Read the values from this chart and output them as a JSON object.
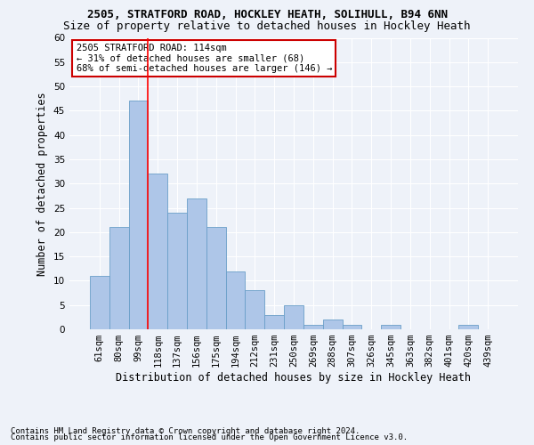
{
  "title1": "2505, STRATFORD ROAD, HOCKLEY HEATH, SOLIHULL, B94 6NN",
  "title2": "Size of property relative to detached houses in Hockley Heath",
  "xlabel": "Distribution of detached houses by size in Hockley Heath",
  "ylabel": "Number of detached properties",
  "categories": [
    "61sqm",
    "80sqm",
    "99sqm",
    "118sqm",
    "137sqm",
    "156sqm",
    "175sqm",
    "194sqm",
    "212sqm",
    "231sqm",
    "250sqm",
    "269sqm",
    "288sqm",
    "307sqm",
    "326sqm",
    "345sqm",
    "363sqm",
    "382sqm",
    "401sqm",
    "420sqm",
    "439sqm"
  ],
  "values": [
    11,
    21,
    47,
    32,
    24,
    27,
    21,
    12,
    8,
    3,
    5,
    1,
    2,
    1,
    0,
    1,
    0,
    0,
    0,
    1,
    0
  ],
  "bar_color": "#aec6e8",
  "bar_edge_color": "#6a9fc8",
  "red_line_x": 2.5,
  "annotation_line1": "2505 STRATFORD ROAD: 114sqm",
  "annotation_line2": "← 31% of detached houses are smaller (68)",
  "annotation_line3": "68% of semi-detached houses are larger (146) →",
  "annotation_box_color": "#ffffff",
  "annotation_box_edge_color": "#cc0000",
  "ylim": [
    0,
    60
  ],
  "yticks": [
    0,
    5,
    10,
    15,
    20,
    25,
    30,
    35,
    40,
    45,
    50,
    55,
    60
  ],
  "footnote1": "Contains HM Land Registry data © Crown copyright and database right 2024.",
  "footnote2": "Contains public sector information licensed under the Open Government Licence v3.0.",
  "background_color": "#eef2f9",
  "grid_color": "#ffffff",
  "title_fontsize": 9,
  "subtitle_fontsize": 9,
  "axis_label_fontsize": 8.5,
  "tick_fontsize": 7.5,
  "footnote_fontsize": 6.5,
  "annotation_fontsize": 7.5
}
